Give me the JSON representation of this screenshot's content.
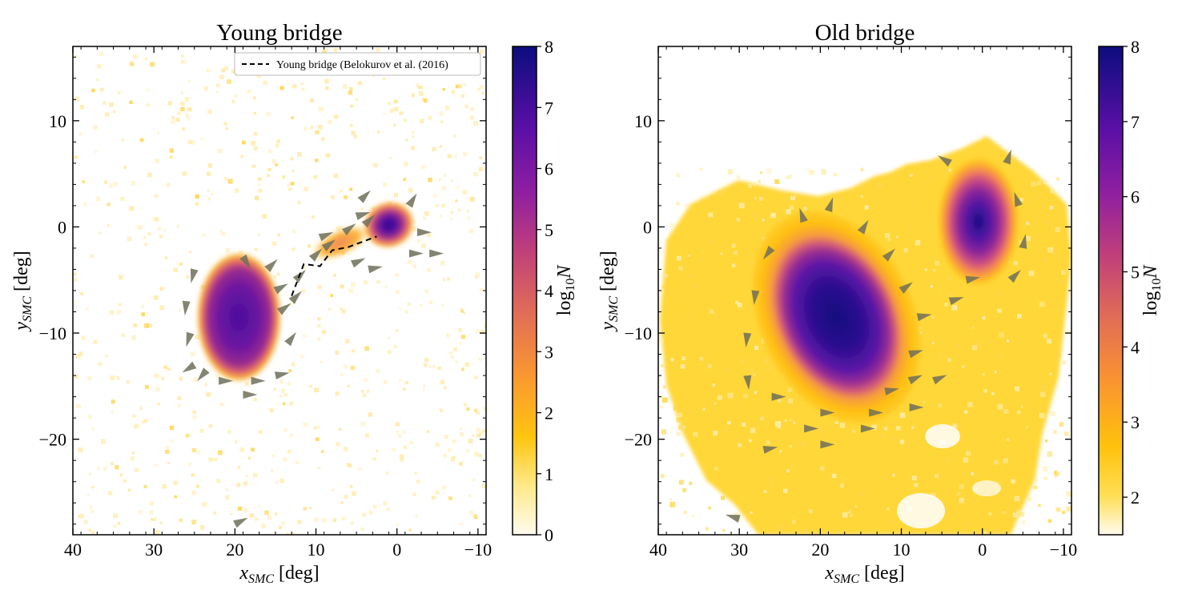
{
  "chart_data": [
    {
      "type": "heatmap",
      "title": "Young bridge",
      "xlabel_main": "x",
      "xlabel_sub": "SMC",
      "xlabel_unit": " [deg]",
      "ylabel_main": "y",
      "ylabel_sub": "SMC",
      "ylabel_unit": " [deg]",
      "xlim": [
        40,
        -11
      ],
      "ylim": [
        -29,
        17
      ],
      "xticks": [
        40,
        30,
        20,
        10,
        0,
        -10
      ],
      "yticks": [
        10,
        0,
        -10,
        -20
      ],
      "colorbar": {
        "label_main": "log",
        "label_sub": "10",
        "label_var": "N",
        "range": [
          0,
          8
        ],
        "ticks": [
          0,
          1,
          2,
          3,
          4,
          5,
          6,
          7,
          8
        ]
      },
      "legend": {
        "placement": "top-right",
        "entries": [
          {
            "label": "Young bridge (Belokurov et al. (2016)",
            "style": "dashed black line"
          }
        ]
      },
      "blobs": [
        {
          "x": 19.5,
          "y": -8.5,
          "rx": 5.3,
          "ry": 6.2,
          "angle": 0,
          "peak_log10N": 6.8
        },
        {
          "x": 1.0,
          "y": 0.2,
          "rx": 3.2,
          "ry": 2.2,
          "angle": -20,
          "peak_log10N": 7.3
        },
        {
          "x": 7.0,
          "y": -1.5,
          "rx": 4.0,
          "ry": 1.3,
          "angle": -25,
          "peak_log10N": 4.0
        }
      ],
      "reference_line": [
        {
          "x": 13.0,
          "y": -6.5
        },
        {
          "x": 11.5,
          "y": -3.5
        },
        {
          "x": 9.5,
          "y": -3.7
        },
        {
          "x": 8.0,
          "y": -2.2
        },
        {
          "x": 6.0,
          "y": -1.9
        },
        {
          "x": 2.5,
          "y": -0.9
        }
      ],
      "arrows": [
        {
          "x": 25,
          "y": -4,
          "dx": 0.2,
          "dy": -0.8
        },
        {
          "x": 26,
          "y": -7,
          "dx": 0.1,
          "dy": -1
        },
        {
          "x": 25.5,
          "y": -10,
          "dx": 0.3,
          "dy": -1
        },
        {
          "x": 25,
          "y": -13,
          "dx": 0.8,
          "dy": -0.5
        },
        {
          "x": 22,
          "y": -14.5,
          "dx": -1,
          "dy": 0
        },
        {
          "x": 18,
          "y": -14.5,
          "dx": -1,
          "dy": 0
        },
        {
          "x": 15,
          "y": -14,
          "dx": -1,
          "dy": 0.2
        },
        {
          "x": 19,
          "y": -15.8,
          "dx": -1,
          "dy": 0
        },
        {
          "x": 13.5,
          "y": -11,
          "dx": -0.6,
          "dy": 0.8
        },
        {
          "x": 14.5,
          "y": -8,
          "dx": -0.8,
          "dy": 0.6
        },
        {
          "x": 15,
          "y": -6,
          "dx": -0.9,
          "dy": 0.5
        },
        {
          "x": 16,
          "y": -4,
          "dx": -0.7,
          "dy": 0.7
        },
        {
          "x": 19,
          "y": -2.8,
          "dx": -0.5,
          "dy": -0.8
        },
        {
          "x": 12.5,
          "y": -5,
          "dx": -0.7,
          "dy": 0.7
        },
        {
          "x": 13,
          "y": -7,
          "dx": -0.7,
          "dy": 0.7
        },
        {
          "x": 10.5,
          "y": -3,
          "dx": -0.7,
          "dy": 0.7
        },
        {
          "x": 9,
          "y": -2,
          "dx": -0.8,
          "dy": 0.6
        },
        {
          "x": 5.5,
          "y": -3.5,
          "dx": -0.9,
          "dy": 0.4
        },
        {
          "x": 3.5,
          "y": -4,
          "dx": -1,
          "dy": 0.2
        },
        {
          "x": 6.5,
          "y": -0.5,
          "dx": -0.8,
          "dy": 0.6
        },
        {
          "x": 4,
          "y": 0.2,
          "dx": -0.7,
          "dy": 0.7
        },
        {
          "x": 4.5,
          "y": 2.5,
          "dx": -0.7,
          "dy": 0.7
        },
        {
          "x": 5.0,
          "y": 1.0,
          "dx": -1,
          "dy": 0.3
        },
        {
          "x": -1.5,
          "y": 2,
          "dx": -0.5,
          "dy": 0.8
        },
        {
          "x": -2.5,
          "y": -0.5,
          "dx": -1,
          "dy": 0
        },
        {
          "x": -4,
          "y": -2.5,
          "dx": -1,
          "dy": 0
        },
        {
          "x": -1.5,
          "y": -2.5,
          "dx": -1,
          "dy": 0
        },
        {
          "x": 9.5,
          "y": -1,
          "dx": -1,
          "dy": 0.4
        },
        {
          "x": 23.5,
          "y": -13.5,
          "dx": 0.6,
          "dy": -0.7
        },
        {
          "x": 20,
          "y": -28,
          "dx": -1,
          "dy": 0.5
        }
      ]
    },
    {
      "type": "heatmap",
      "title": "Old bridge",
      "xlabel_main": "x",
      "xlabel_sub": "SMC",
      "xlabel_unit": " [deg]",
      "ylabel_main": "y",
      "ylabel_sub": "SMC",
      "ylabel_unit": " [deg]",
      "xlim": [
        40,
        -11
      ],
      "ylim": [
        -29,
        17
      ],
      "xticks": [
        40,
        30,
        20,
        10,
        0,
        -10
      ],
      "yticks": [
        10,
        0,
        -10,
        -20
      ],
      "colorbar": {
        "label_main": "log",
        "label_sub": "10",
        "label_var": "N",
        "range": [
          1.5,
          8
        ],
        "ticks": [
          2,
          3,
          4,
          5,
          6,
          7,
          8
        ]
      },
      "blobs": [
        {
          "x": 18,
          "y": -8.5,
          "rx": 9.5,
          "ry": 10.5,
          "angle": -25,
          "peak_log10N": 8.0
        },
        {
          "x": 0.5,
          "y": 0.5,
          "rx": 5.0,
          "ry": 6.0,
          "angle": 0,
          "peak_log10N": 7.6
        }
      ],
      "arrows": [
        {
          "x": 26,
          "y": -2,
          "dx": 0.6,
          "dy": -0.8
        },
        {
          "x": 28,
          "y": -6,
          "dx": 0.1,
          "dy": -1
        },
        {
          "x": 29,
          "y": -10,
          "dx": 0.1,
          "dy": -1
        },
        {
          "x": 29,
          "y": -14,
          "dx": -0.1,
          "dy": -1
        },
        {
          "x": 26,
          "y": -16,
          "dx": -1,
          "dy": 0
        },
        {
          "x": 20,
          "y": -17.5,
          "dx": -1,
          "dy": 0
        },
        {
          "x": 14,
          "y": -17.5,
          "dx": -1,
          "dy": 0
        },
        {
          "x": 9,
          "y": -17,
          "dx": -1,
          "dy": 0
        },
        {
          "x": 22,
          "y": -19,
          "dx": -1,
          "dy": 0
        },
        {
          "x": 15,
          "y": -19,
          "dx": -1,
          "dy": 0
        },
        {
          "x": 20,
          "y": -20.5,
          "dx": -1,
          "dy": 0
        },
        {
          "x": 12,
          "y": -15.5,
          "dx": -1,
          "dy": 0.2
        },
        {
          "x": 9,
          "y": -14.5,
          "dx": -0.9,
          "dy": 0.4
        },
        {
          "x": 9,
          "y": -12,
          "dx": -1,
          "dy": 0.3
        },
        {
          "x": 8,
          "y": -8.5,
          "dx": -1,
          "dy": 0.2
        },
        {
          "x": 10,
          "y": -6,
          "dx": -0.8,
          "dy": 0.6
        },
        {
          "x": 12,
          "y": -3,
          "dx": -0.7,
          "dy": 0.7
        },
        {
          "x": 15,
          "y": -0.5,
          "dx": -0.5,
          "dy": 0.8
        },
        {
          "x": 19,
          "y": 1.5,
          "dx": -0.3,
          "dy": 0.9
        },
        {
          "x": 22,
          "y": 0.5,
          "dx": 0.3,
          "dy": 0.9
        },
        {
          "x": 4,
          "y": -7,
          "dx": -1,
          "dy": 0.3
        },
        {
          "x": 2,
          "y": -5,
          "dx": -1,
          "dy": 0.2
        },
        {
          "x": -3.5,
          "y": -5,
          "dx": -0.7,
          "dy": 0.7
        },
        {
          "x": -5,
          "y": -2,
          "dx": -0.2,
          "dy": 1
        },
        {
          "x": -4.5,
          "y": 2,
          "dx": 0.3,
          "dy": 0.9
        },
        {
          "x": 4,
          "y": 6,
          "dx": 0.8,
          "dy": 0.5
        },
        {
          "x": -3,
          "y": 6,
          "dx": -0.3,
          "dy": 0.9
        },
        {
          "x": 6,
          "y": -14.5,
          "dx": -0.9,
          "dy": 0.4
        },
        {
          "x": 27,
          "y": -21,
          "dx": -1,
          "dy": 0.2
        },
        {
          "x": 30,
          "y": -27.5,
          "dx": 1,
          "dy": 0.3
        }
      ]
    }
  ]
}
